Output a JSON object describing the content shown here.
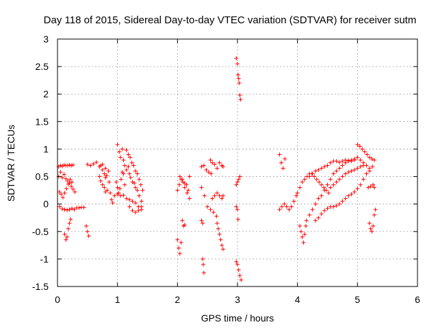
{
  "chart_data": {
    "type": "scatter",
    "title": "Day 118 of 2015, Sidereal Day-to-day VTEC variation (SDTVAR) for receiver sutm",
    "xlabel": "GPS time / hours",
    "ylabel": "SDTVAR / TECUs",
    "xlim": [
      0,
      6
    ],
    "ylim": [
      -1.5,
      3
    ],
    "xticks": [
      0,
      1,
      2,
      3,
      4,
      5,
      6
    ],
    "xtick_labels": [
      "0",
      "1",
      "2",
      "3",
      "4",
      "5",
      "6"
    ],
    "yticks": [
      -1.5,
      -1,
      -0.5,
      0,
      0.5,
      1,
      1.5,
      2,
      2.5,
      3
    ],
    "ytick_labels": [
      "-1.5",
      "-1",
      "-0.5",
      "0",
      "0.5",
      "1",
      "1.5",
      "2",
      "2.5",
      "3"
    ],
    "grid": true,
    "marker": "+",
    "color": "#ff0000",
    "series": [
      {
        "name": "SDTVAR",
        "points": [
          [
            0.02,
            0.68
          ],
          [
            0.05,
            0.7
          ],
          [
            0.08,
            0.69
          ],
          [
            0.11,
            0.71
          ],
          [
            0.14,
            0.7
          ],
          [
            0.17,
            0.7
          ],
          [
            0.2,
            0.71
          ],
          [
            0.23,
            0.7
          ],
          [
            0.26,
            0.71
          ],
          [
            0.02,
            0.5
          ],
          [
            0.05,
            0.58
          ],
          [
            0.08,
            0.48
          ],
          [
            0.11,
            0.54
          ],
          [
            0.14,
            0.46
          ],
          [
            0.17,
            0.42
          ],
          [
            0.2,
            0.38
          ],
          [
            0.23,
            0.32
          ],
          [
            0.26,
            0.27
          ],
          [
            0.29,
            0.22
          ],
          [
            0.03,
            0.22
          ],
          [
            0.06,
            0.18
          ],
          [
            0.09,
            0.12
          ],
          [
            0.12,
            0.2
          ],
          [
            0.15,
            0.28
          ],
          [
            0.18,
            0.36
          ],
          [
            0.21,
            0.45
          ],
          [
            0.24,
            0.4
          ],
          [
            0.04,
            -0.05
          ],
          [
            0.08,
            -0.09
          ],
          [
            0.12,
            -0.1
          ],
          [
            0.16,
            -0.11
          ],
          [
            0.2,
            -0.1
          ],
          [
            0.24,
            -0.08
          ],
          [
            0.28,
            -0.1
          ],
          [
            0.32,
            -0.07
          ],
          [
            0.36,
            -0.07
          ],
          [
            0.4,
            -0.06
          ],
          [
            0.44,
            -0.06
          ],
          [
            0.12,
            -0.55
          ],
          [
            0.14,
            -0.65
          ],
          [
            0.16,
            -0.6
          ],
          [
            0.18,
            -0.45
          ],
          [
            0.2,
            -0.35
          ],
          [
            0.22,
            -0.28
          ],
          [
            0.48,
            -0.4
          ],
          [
            0.5,
            -0.5
          ],
          [
            0.52,
            -0.58
          ],
          [
            0.5,
            0.72
          ],
          [
            0.55,
            0.7
          ],
          [
            0.6,
            0.73
          ],
          [
            0.65,
            0.76
          ],
          [
            0.7,
            0.68
          ],
          [
            0.75,
            0.72
          ],
          [
            0.8,
            0.65
          ],
          [
            0.85,
            0.6
          ],
          [
            0.7,
            0.5
          ],
          [
            0.72,
            0.42
          ],
          [
            0.75,
            0.35
          ],
          [
            0.78,
            0.3
          ],
          [
            0.8,
            0.22
          ],
          [
            0.83,
            0.25
          ],
          [
            0.86,
            0.4
          ],
          [
            0.88,
            0.2
          ],
          [
            0.9,
            0.08
          ],
          [
            0.92,
            0.02
          ],
          [
            0.72,
            0.7
          ],
          [
            0.75,
            0.62
          ],
          [
            0.78,
            0.55
          ],
          [
            0.8,
            0.48
          ],
          [
            0.82,
            0.52
          ],
          [
            0.95,
            0.15
          ],
          [
            1.0,
            0.18
          ],
          [
            1.05,
            0.15
          ],
          [
            1.1,
            0.16
          ],
          [
            1.15,
            0.1
          ],
          [
            1.2,
            0.08
          ],
          [
            1.25,
            0.05
          ],
          [
            1.3,
            0.02
          ],
          [
            1.35,
            -0.05
          ],
          [
            1.4,
            -0.1
          ],
          [
            1.0,
            1.08
          ],
          [
            1.03,
            0.95
          ],
          [
            1.05,
            0.85
          ],
          [
            1.08,
            1.0
          ],
          [
            1.1,
            0.8
          ],
          [
            1.12,
            0.7
          ],
          [
            1.15,
            0.62
          ],
          [
            1.18,
            0.68
          ],
          [
            1.2,
            0.55
          ],
          [
            1.22,
            0.48
          ],
          [
            1.25,
            0.4
          ],
          [
            1.28,
            0.38
          ],
          [
            1.3,
            0.3
          ],
          [
            1.33,
            0.25
          ],
          [
            1.36,
            0.15
          ],
          [
            1.4,
            0.05
          ],
          [
            0.98,
            0.4
          ],
          [
            1.0,
            0.3
          ],
          [
            1.02,
            0.2
          ],
          [
            1.04,
            0.28
          ],
          [
            1.06,
            0.45
          ],
          [
            1.08,
            0.58
          ],
          [
            1.1,
            0.55
          ],
          [
            1.12,
            0.35
          ],
          [
            1.15,
            0.98
          ],
          [
            1.18,
            0.9
          ],
          [
            1.21,
            0.85
          ],
          [
            1.24,
            0.75
          ],
          [
            1.27,
            0.7
          ],
          [
            1.3,
            0.6
          ],
          [
            1.33,
            0.55
          ],
          [
            1.36,
            0.45
          ],
          [
            1.39,
            0.35
          ],
          [
            1.42,
            0.25
          ],
          [
            1.2,
            -0.05
          ],
          [
            1.25,
            -0.12
          ],
          [
            1.3,
            -0.15
          ],
          [
            1.35,
            -0.12
          ],
          [
            1.4,
            -0.05
          ],
          [
            2.0,
            -0.65
          ],
          [
            2.02,
            -0.8
          ],
          [
            2.04,
            -0.9
          ],
          [
            2.06,
            -0.7
          ],
          [
            2.0,
            0.25
          ],
          [
            2.03,
            0.35
          ],
          [
            2.06,
            0.45
          ],
          [
            2.09,
            0.4
          ],
          [
            2.12,
            0.3
          ],
          [
            2.15,
            0.35
          ],
          [
            2.18,
            0.25
          ],
          [
            2.2,
            0.1
          ],
          [
            2.04,
            0.5
          ],
          [
            2.08,
            0.45
          ],
          [
            2.12,
            0.38
          ],
          [
            2.16,
            0.2
          ],
          [
            2.2,
            0.5
          ],
          [
            2.08,
            -0.3
          ],
          [
            2.1,
            -0.4
          ],
          [
            2.12,
            -0.38
          ],
          [
            2.4,
            0.68
          ],
          [
            2.44,
            0.7
          ],
          [
            2.48,
            0.62
          ],
          [
            2.52,
            0.58
          ],
          [
            2.56,
            0.55
          ],
          [
            2.4,
            0.3
          ],
          [
            2.45,
            0.15
          ],
          [
            2.5,
            -0.05
          ],
          [
            2.55,
            -0.1
          ],
          [
            2.6,
            -0.15
          ],
          [
            2.65,
            -0.22
          ],
          [
            2.4,
            -0.3
          ],
          [
            2.42,
            -0.35
          ],
          [
            2.42,
            -1.0
          ],
          [
            2.43,
            -1.1
          ],
          [
            2.44,
            -1.25
          ],
          [
            2.55,
            0.8
          ],
          [
            2.58,
            0.75
          ],
          [
            2.62,
            0.72
          ],
          [
            2.66,
            0.65
          ],
          [
            2.7,
            0.75
          ],
          [
            2.74,
            0.7
          ],
          [
            2.76,
            0.68
          ],
          [
            2.58,
            0.1
          ],
          [
            2.62,
            0.15
          ],
          [
            2.66,
            0.2
          ],
          [
            2.7,
            0.15
          ],
          [
            2.74,
            0.1
          ],
          [
            2.76,
            0.15
          ],
          [
            2.66,
            -0.35
          ],
          [
            2.68,
            -0.45
          ],
          [
            2.7,
            -0.55
          ],
          [
            2.72,
            -0.65
          ],
          [
            2.74,
            -0.75
          ],
          [
            2.76,
            -0.82
          ],
          [
            2.98,
            2.65
          ],
          [
            3.0,
            2.55
          ],
          [
            3.01,
            2.35
          ],
          [
            3.02,
            2.28
          ],
          [
            3.03,
            2.2
          ],
          [
            3.04,
            1.98
          ],
          [
            3.05,
            1.9
          ],
          [
            2.98,
            0.35
          ],
          [
            3.0,
            0.4
          ],
          [
            3.02,
            0.45
          ],
          [
            3.04,
            0.5
          ],
          [
            2.98,
            -0.05
          ],
          [
            3.0,
            -0.1
          ],
          [
            3.01,
            -0.28
          ],
          [
            2.98,
            -1.05
          ],
          [
            3.0,
            -1.1
          ],
          [
            3.02,
            -1.2
          ],
          [
            3.04,
            -1.3
          ],
          [
            3.06,
            -1.38
          ],
          [
            3.7,
            0.9
          ],
          [
            3.73,
            0.75
          ],
          [
            3.76,
            0.65
          ],
          [
            3.79,
            0.82
          ],
          [
            3.7,
            -0.1
          ],
          [
            3.74,
            -0.05
          ],
          [
            3.78,
            0.0
          ],
          [
            3.82,
            -0.05
          ],
          [
            3.86,
            -0.1
          ],
          [
            3.9,
            -0.05
          ],
          [
            3.94,
            0.05
          ],
          [
            3.98,
            0.15
          ],
          [
            4.0,
            0.2
          ],
          [
            4.04,
            0.3
          ],
          [
            4.08,
            0.4
          ],
          [
            4.12,
            0.45
          ],
          [
            4.16,
            0.5
          ],
          [
            4.2,
            0.55
          ],
          [
            4.24,
            0.55
          ],
          [
            4.28,
            0.5
          ],
          [
            4.32,
            0.45
          ],
          [
            4.36,
            0.4
          ],
          [
            4.4,
            0.35
          ],
          [
            4.44,
            0.3
          ],
          [
            4.48,
            0.25
          ],
          [
            4.52,
            0.2
          ],
          [
            4.04,
            -0.4
          ],
          [
            4.06,
            -0.5
          ],
          [
            4.08,
            -0.6
          ],
          [
            4.1,
            -0.7
          ],
          [
            4.12,
            -0.55
          ],
          [
            4.14,
            -0.4
          ],
          [
            4.15,
            -0.3
          ],
          [
            4.2,
            -0.2
          ],
          [
            4.25,
            -0.1
          ],
          [
            4.3,
            0.0
          ],
          [
            4.35,
            0.1
          ],
          [
            4.4,
            0.15
          ],
          [
            4.45,
            0.25
          ],
          [
            4.5,
            0.35
          ],
          [
            4.55,
            0.45
          ],
          [
            4.6,
            0.55
          ],
          [
            4.65,
            0.6
          ],
          [
            4.7,
            0.65
          ],
          [
            4.75,
            0.7
          ],
          [
            4.8,
            0.75
          ],
          [
            4.85,
            0.78
          ],
          [
            4.9,
            0.8
          ],
          [
            4.95,
            0.82
          ],
          [
            5.0,
            0.85
          ],
          [
            5.05,
            0.8
          ],
          [
            5.1,
            0.75
          ],
          [
            5.15,
            0.7
          ],
          [
            5.2,
            0.65
          ],
          [
            4.2,
            0.5
          ],
          [
            4.25,
            0.55
          ],
          [
            4.3,
            0.6
          ],
          [
            4.35,
            0.62
          ],
          [
            4.4,
            0.65
          ],
          [
            4.45,
            0.68
          ],
          [
            4.5,
            0.7
          ],
          [
            4.55,
            0.75
          ],
          [
            4.6,
            0.78
          ],
          [
            4.65,
            0.78
          ],
          [
            4.7,
            0.76
          ],
          [
            4.75,
            0.78
          ],
          [
            4.8,
            0.8
          ],
          [
            4.85,
            0.79
          ],
          [
            4.9,
            0.78
          ],
          [
            4.95,
            0.8
          ],
          [
            4.3,
            -0.3
          ],
          [
            4.35,
            -0.25
          ],
          [
            4.4,
            -0.18
          ],
          [
            4.45,
            -0.12
          ],
          [
            4.5,
            -0.08
          ],
          [
            4.55,
            -0.05
          ],
          [
            4.6,
            -0.05
          ],
          [
            4.65,
            -0.03
          ],
          [
            4.7,
            0.0
          ],
          [
            4.75,
            0.05
          ],
          [
            4.8,
            0.1
          ],
          [
            4.85,
            0.15
          ],
          [
            4.9,
            0.18
          ],
          [
            4.95,
            0.22
          ],
          [
            5.0,
            0.28
          ],
          [
            5.05,
            0.35
          ],
          [
            5.1,
            0.45
          ],
          [
            5.15,
            0.55
          ],
          [
            5.2,
            0.6
          ],
          [
            5.25,
            0.68
          ],
          [
            4.55,
            0.3
          ],
          [
            4.6,
            0.35
          ],
          [
            4.65,
            0.4
          ],
          [
            4.7,
            0.45
          ],
          [
            4.75,
            0.5
          ],
          [
            4.8,
            0.55
          ],
          [
            4.85,
            0.58
          ],
          [
            4.9,
            0.6
          ],
          [
            4.95,
            0.62
          ],
          [
            5.0,
            0.65
          ],
          [
            5.05,
            0.68
          ],
          [
            5.1,
            0.7
          ],
          [
            5.0,
            1.08
          ],
          [
            5.04,
            1.05
          ],
          [
            5.08,
            1.0
          ],
          [
            5.12,
            0.95
          ],
          [
            5.16,
            0.9
          ],
          [
            5.2,
            0.85
          ],
          [
            5.24,
            0.82
          ],
          [
            5.28,
            0.8
          ],
          [
            5.18,
            0.3
          ],
          [
            5.22,
            0.32
          ],
          [
            5.26,
            0.35
          ],
          [
            5.28,
            0.3
          ],
          [
            5.2,
            -0.35
          ],
          [
            5.22,
            -0.45
          ],
          [
            5.24,
            -0.5
          ],
          [
            5.26,
            -0.4
          ],
          [
            5.28,
            -0.2
          ],
          [
            5.3,
            -0.1
          ]
        ]
      }
    ]
  }
}
